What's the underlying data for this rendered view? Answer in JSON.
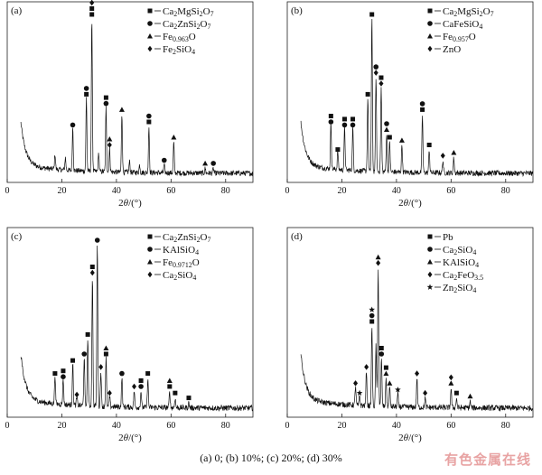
{
  "figure": {
    "caption": "(a) 0; (b) 10%; (c) 20%; (d) 30%",
    "watermark": "有色金属在线"
  },
  "chart_data": [
    {
      "type": "line",
      "panel_label": "(a)",
      "xlabel": "2θ/(°)",
      "xlim": [
        0,
        90
      ],
      "xticks": [
        0,
        20,
        40,
        60,
        80
      ],
      "yticks_shown": false,
      "legend_position": "top-right",
      "legend": [
        {
          "marker": "square",
          "name": "Ca2MgSi2O7"
        },
        {
          "marker": "circle",
          "name": "Ca2ZnSi2O7"
        },
        {
          "marker": "triangle",
          "name": "Fe0.963O"
        },
        {
          "marker": "diamond",
          "name": "Fe2SiO4"
        }
      ],
      "peaks": [
        {
          "x": 17.5,
          "y": 0.1
        },
        {
          "x": 21.3,
          "y": 0.08
        },
        {
          "x": 24.0,
          "y": 0.28,
          "markers": [
            "circle"
          ]
        },
        {
          "x": 29.0,
          "y": 0.48,
          "markers": [
            "square",
            "circle"
          ]
        },
        {
          "x": 31.0,
          "y": 1.0,
          "markers": [
            "square",
            "square",
            "diamond"
          ]
        },
        {
          "x": 33.5,
          "y": 0.12
        },
        {
          "x": 36.2,
          "y": 0.42,
          "markers": [
            "circle",
            "square"
          ]
        },
        {
          "x": 37.5,
          "y": 0.15,
          "markers": [
            "diamond",
            "triangle"
          ]
        },
        {
          "x": 42.0,
          "y": 0.38,
          "markers": [
            "triangle"
          ]
        },
        {
          "x": 44.8,
          "y": 0.07
        },
        {
          "x": 48.5,
          "y": 0.05
        },
        {
          "x": 51.9,
          "y": 0.3,
          "markers": [
            "square",
            "circle"
          ]
        },
        {
          "x": 57.5,
          "y": 0.05,
          "markers": [
            "circle"
          ]
        },
        {
          "x": 61.0,
          "y": 0.2,
          "markers": [
            "triangle"
          ]
        },
        {
          "x": 72.5,
          "y": 0.03,
          "markers": [
            "triangle"
          ]
        },
        {
          "x": 75.5,
          "y": 0.03,
          "markers": [
            "circle"
          ]
        }
      ]
    },
    {
      "type": "line",
      "panel_label": "(b)",
      "xlabel": "2θ/(°)",
      "xlim": [
        0,
        90
      ],
      "xticks": [
        0,
        20,
        40,
        60,
        80
      ],
      "yticks_shown": false,
      "legend_position": "top-right",
      "legend": [
        {
          "marker": "square",
          "name": "Ca2MgSi2O7"
        },
        {
          "marker": "circle",
          "name": "CaFeSiO4"
        },
        {
          "marker": "triangle",
          "name": "Fe0.957O"
        },
        {
          "marker": "diamond",
          "name": "ZnO"
        }
      ],
      "peaks": [
        {
          "x": 16.0,
          "y": 0.3,
          "markers": [
            "circle",
            "square"
          ]
        },
        {
          "x": 18.5,
          "y": 0.12,
          "markers": [
            "square"
          ]
        },
        {
          "x": 21.0,
          "y": 0.28,
          "markers": [
            "circle",
            "square"
          ]
        },
        {
          "x": 24.0,
          "y": 0.28,
          "markers": [
            "circle",
            "square"
          ]
        },
        {
          "x": 29.5,
          "y": 0.48,
          "markers": [
            "square"
          ]
        },
        {
          "x": 31.0,
          "y": 1.0,
          "markers": [
            "square"
          ]
        },
        {
          "x": 32.5,
          "y": 0.62,
          "markers": [
            "diamond",
            "circle"
          ]
        },
        {
          "x": 34.4,
          "y": 0.55,
          "markers": [
            "diamond",
            "square"
          ]
        },
        {
          "x": 36.4,
          "y": 0.25,
          "markers": [
            "triangle",
            "circle"
          ]
        },
        {
          "x": 37.5,
          "y": 0.2,
          "markers": [
            "square"
          ]
        },
        {
          "x": 42.0,
          "y": 0.18,
          "markers": [
            "triangle"
          ]
        },
        {
          "x": 49.5,
          "y": 0.38,
          "markers": [
            "square",
            "circle"
          ]
        },
        {
          "x": 52.0,
          "y": 0.15,
          "markers": [
            "square"
          ]
        },
        {
          "x": 57.0,
          "y": 0.08,
          "markers": [
            "diamond"
          ]
        },
        {
          "x": 61.0,
          "y": 0.1,
          "markers": [
            "triangle"
          ]
        }
      ]
    },
    {
      "type": "line",
      "panel_label": "(c)",
      "xlabel": "2θ/(°)",
      "xlim": [
        0,
        90
      ],
      "xticks": [
        0,
        20,
        40,
        60,
        80
      ],
      "yticks_shown": false,
      "legend_position": "top-right",
      "legend": [
        {
          "marker": "square",
          "name": "Ca2ZnSi2O7"
        },
        {
          "marker": "circle",
          "name": "KAlSiO4"
        },
        {
          "marker": "triangle",
          "name": "Fe0.9712O"
        },
        {
          "marker": "diamond",
          "name": "Ca2SiO4"
        }
      ],
      "peaks": [
        {
          "x": 17.5,
          "y": 0.18,
          "markers": [
            "square"
          ]
        },
        {
          "x": 20.5,
          "y": 0.16,
          "markers": [
            "circle",
            "square"
          ]
        },
        {
          "x": 24.0,
          "y": 0.26,
          "markers": [
            "square"
          ]
        },
        {
          "x": 25.5,
          "y": 0.05,
          "markers": [
            "diamond"
          ]
        },
        {
          "x": 28.2,
          "y": 0.3,
          "markers": [
            "circle"
          ]
        },
        {
          "x": 29.5,
          "y": 0.42,
          "markers": [
            "square"
          ]
        },
        {
          "x": 31.2,
          "y": 0.8,
          "markers": [
            "diamond",
            "square"
          ]
        },
        {
          "x": 33.0,
          "y": 1.0,
          "markers": [
            "circle"
          ]
        },
        {
          "x": 34.3,
          "y": 0.22,
          "markers": [
            "diamond"
          ]
        },
        {
          "x": 36.2,
          "y": 0.3,
          "markers": [
            "square",
            "triangle"
          ]
        },
        {
          "x": 37.5,
          "y": 0.06,
          "markers": [
            "diamond"
          ]
        },
        {
          "x": 42.0,
          "y": 0.18,
          "markers": [
            "circle"
          ]
        },
        {
          "x": 46.5,
          "y": 0.1,
          "markers": [
            "diamond"
          ]
        },
        {
          "x": 49.0,
          "y": 0.1,
          "markers": [
            "circle",
            "square"
          ]
        },
        {
          "x": 51.5,
          "y": 0.18,
          "markers": [
            "square"
          ]
        },
        {
          "x": 59.5,
          "y": 0.1,
          "markers": [
            "square",
            "triangle"
          ]
        },
        {
          "x": 61.5,
          "y": 0.06,
          "markers": [
            "square"
          ]
        },
        {
          "x": 66.5,
          "y": 0.03,
          "markers": [
            "square"
          ]
        }
      ]
    },
    {
      "type": "line",
      "panel_label": "(d)",
      "xlabel": "2θ/(°)",
      "xlim": [
        0,
        90
      ],
      "xticks": [
        0,
        20,
        40,
        60,
        80
      ],
      "yticks_shown": false,
      "legend_position": "top-right",
      "legend": [
        {
          "marker": "square",
          "name": "Pb"
        },
        {
          "marker": "circle",
          "name": "Ca2SiO4"
        },
        {
          "marker": "triangle",
          "name": "KAlSiO4"
        },
        {
          "marker": "diamond",
          "name": "Ca2FeO3.5"
        },
        {
          "marker": "star",
          "name": "Zn2SiO4"
        }
      ],
      "peaks": [
        {
          "x": 25.0,
          "y": 0.12,
          "markers": [
            "diamond"
          ]
        },
        {
          "x": 26.5,
          "y": 0.06,
          "markers": [
            "star"
          ]
        },
        {
          "x": 29.0,
          "y": 0.22,
          "markers": [
            "diamond"
          ]
        },
        {
          "x": 31.0,
          "y": 0.5,
          "markers": [
            "square",
            "circle",
            "star"
          ]
        },
        {
          "x": 32.5,
          "y": 0.38
        },
        {
          "x": 33.3,
          "y": 0.86,
          "markers": [
            "diamond",
            "triangle"
          ]
        },
        {
          "x": 34.5,
          "y": 0.3,
          "markers": [
            "circle",
            "square"
          ]
        },
        {
          "x": 36.2,
          "y": 0.18,
          "markers": [
            "triangle",
            "square"
          ]
        },
        {
          "x": 37.5,
          "y": 0.12,
          "markers": [
            "triangle"
          ]
        },
        {
          "x": 40.5,
          "y": 0.08,
          "markers": [
            "star"
          ]
        },
        {
          "x": 47.5,
          "y": 0.18,
          "markers": [
            "diamond"
          ]
        },
        {
          "x": 50.5,
          "y": 0.06,
          "markers": [
            "diamond"
          ]
        },
        {
          "x": 60.0,
          "y": 0.12,
          "markers": [
            "triangle",
            "diamond"
          ]
        },
        {
          "x": 62.0,
          "y": 0.06,
          "markers": [
            "square"
          ]
        },
        {
          "x": 67.0,
          "y": 0.04,
          "markers": [
            "triangle"
          ]
        }
      ]
    }
  ]
}
